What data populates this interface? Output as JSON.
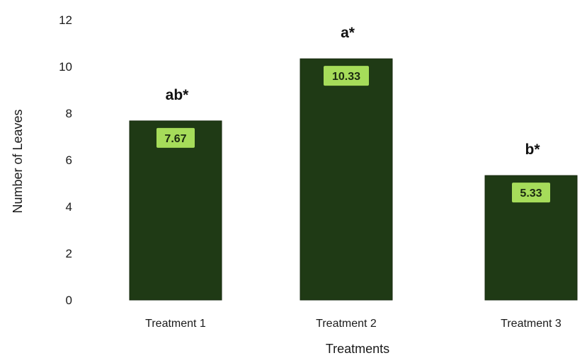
{
  "chart_data": {
    "type": "bar",
    "title": "",
    "xlabel": "Treatments",
    "ylabel": "Number of Leaves",
    "ylim": [
      0,
      12
    ],
    "yticks": [
      0,
      2,
      4,
      6,
      8,
      10,
      12
    ],
    "categories": [
      "Treatment 1",
      "Treatment 2",
      "Treatment 3"
    ],
    "values": [
      7.67,
      10.33,
      5.33
    ],
    "data_labels": [
      "7.67",
      "10.33",
      "5.33"
    ],
    "significance_labels": [
      "ab*",
      "a*",
      "b*"
    ],
    "grid": false,
    "legend": "none",
    "colors": {
      "bar": "#1f3a15",
      "data_label_bg": "#a6dc5a",
      "text": "#1a1a1a"
    }
  }
}
